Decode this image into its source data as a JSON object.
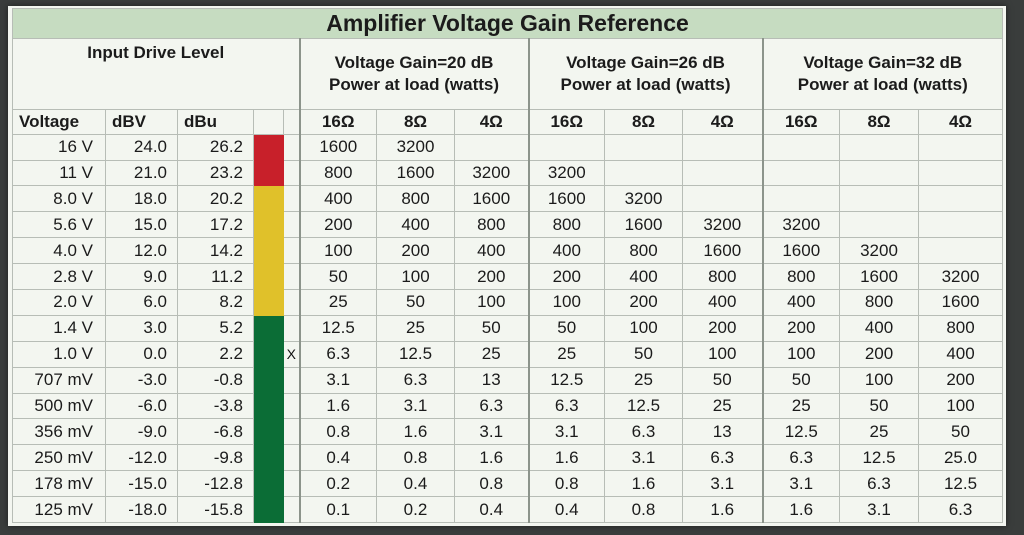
{
  "title": "Amplifier Voltage Gain Reference",
  "input_header": "Input Drive Level",
  "col_headers": {
    "voltage": "Voltage",
    "dbv": "dBV",
    "dbu": "dBu"
  },
  "gain_groups": [
    {
      "gain": "Voltage Gain=20 dB",
      "power": "Power at load (watts)",
      "ohms": [
        "16Ω",
        "8Ω",
        "4Ω"
      ]
    },
    {
      "gain": "Voltage Gain=26 dB",
      "power": "Power at load (watts)",
      "ohms": [
        "16Ω",
        "8Ω",
        "4Ω"
      ]
    },
    {
      "gain": "Voltage Gain=32 dB",
      "power": "Power at load (watts)",
      "ohms": [
        "16Ω",
        "8Ω",
        "4Ω"
      ]
    }
  ],
  "colors": {
    "red": "#c8202a",
    "yellow": "#e0c12a",
    "green": "#0b6d36",
    "title_bg": "#c6dcc1"
  },
  "rows": [
    {
      "voltage": "16 V",
      "dbv": "24.0",
      "dbu": "26.2",
      "zone": "red",
      "marker": "",
      "values": [
        "1600",
        "3200",
        "",
        "",
        "",
        "",
        "",
        "",
        ""
      ]
    },
    {
      "voltage": "11 V",
      "dbv": "21.0",
      "dbu": "23.2",
      "zone": "red",
      "marker": "",
      "values": [
        "800",
        "1600",
        "3200",
        "3200",
        "",
        "",
        "",
        "",
        ""
      ]
    },
    {
      "voltage": "8.0 V",
      "dbv": "18.0",
      "dbu": "20.2",
      "zone": "yellow",
      "marker": "",
      "values": [
        "400",
        "800",
        "1600",
        "1600",
        "3200",
        "",
        "",
        "",
        ""
      ]
    },
    {
      "voltage": "5.6 V",
      "dbv": "15.0",
      "dbu": "17.2",
      "zone": "yellow",
      "marker": "",
      "values": [
        "200",
        "400",
        "800",
        "800",
        "1600",
        "3200",
        "3200",
        "",
        ""
      ]
    },
    {
      "voltage": "4.0 V",
      "dbv": "12.0",
      "dbu": "14.2",
      "zone": "yellow",
      "marker": "",
      "values": [
        "100",
        "200",
        "400",
        "400",
        "800",
        "1600",
        "1600",
        "3200",
        ""
      ]
    },
    {
      "voltage": "2.8 V",
      "dbv": "9.0",
      "dbu": "11.2",
      "zone": "yellow",
      "marker": "",
      "values": [
        "50",
        "100",
        "200",
        "200",
        "400",
        "800",
        "800",
        "1600",
        "3200"
      ]
    },
    {
      "voltage": "2.0 V",
      "dbv": "6.0",
      "dbu": "8.2",
      "zone": "yellow",
      "marker": "",
      "values": [
        "25",
        "50",
        "100",
        "100",
        "200",
        "400",
        "400",
        "800",
        "1600"
      ]
    },
    {
      "voltage": "1.4 V",
      "dbv": "3.0",
      "dbu": "5.2",
      "zone": "green",
      "marker": "",
      "values": [
        "12.5",
        "25",
        "50",
        "50",
        "100",
        "200",
        "200",
        "400",
        "800"
      ]
    },
    {
      "voltage": "1.0 V",
      "dbv": "0.0",
      "dbu": "2.2",
      "zone": "green",
      "marker": "X",
      "values": [
        "6.3",
        "12.5",
        "25",
        "25",
        "50",
        "100",
        "100",
        "200",
        "400"
      ]
    },
    {
      "voltage": "707 mV",
      "dbv": "-3.0",
      "dbu": "-0.8",
      "zone": "green",
      "marker": "",
      "values": [
        "3.1",
        "6.3",
        "13",
        "12.5",
        "25",
        "50",
        "50",
        "100",
        "200"
      ]
    },
    {
      "voltage": "500 mV",
      "dbv": "-6.0",
      "dbu": "-3.8",
      "zone": "green",
      "marker": "",
      "values": [
        "1.6",
        "3.1",
        "6.3",
        "6.3",
        "12.5",
        "25",
        "25",
        "50",
        "100"
      ]
    },
    {
      "voltage": "356 mV",
      "dbv": "-9.0",
      "dbu": "-6.8",
      "zone": "green",
      "marker": "",
      "values": [
        "0.8",
        "1.6",
        "3.1",
        "3.1",
        "6.3",
        "13",
        "12.5",
        "25",
        "50"
      ]
    },
    {
      "voltage": "250 mV",
      "dbv": "-12.0",
      "dbu": "-9.8",
      "zone": "green",
      "marker": "",
      "values": [
        "0.4",
        "0.8",
        "1.6",
        "1.6",
        "3.1",
        "6.3",
        "6.3",
        "12.5",
        "25.0"
      ]
    },
    {
      "voltage": "178 mV",
      "dbv": "-15.0",
      "dbu": "-12.8",
      "zone": "green",
      "marker": "",
      "values": [
        "0.2",
        "0.4",
        "0.8",
        "0.8",
        "1.6",
        "3.1",
        "3.1",
        "6.3",
        "12.5"
      ]
    },
    {
      "voltage": "125 mV",
      "dbv": "-18.0",
      "dbu": "-15.8",
      "zone": "green",
      "marker": "",
      "values": [
        "0.1",
        "0.2",
        "0.4",
        "0.4",
        "0.8",
        "1.6",
        "1.6",
        "3.1",
        "6.3"
      ]
    }
  ]
}
